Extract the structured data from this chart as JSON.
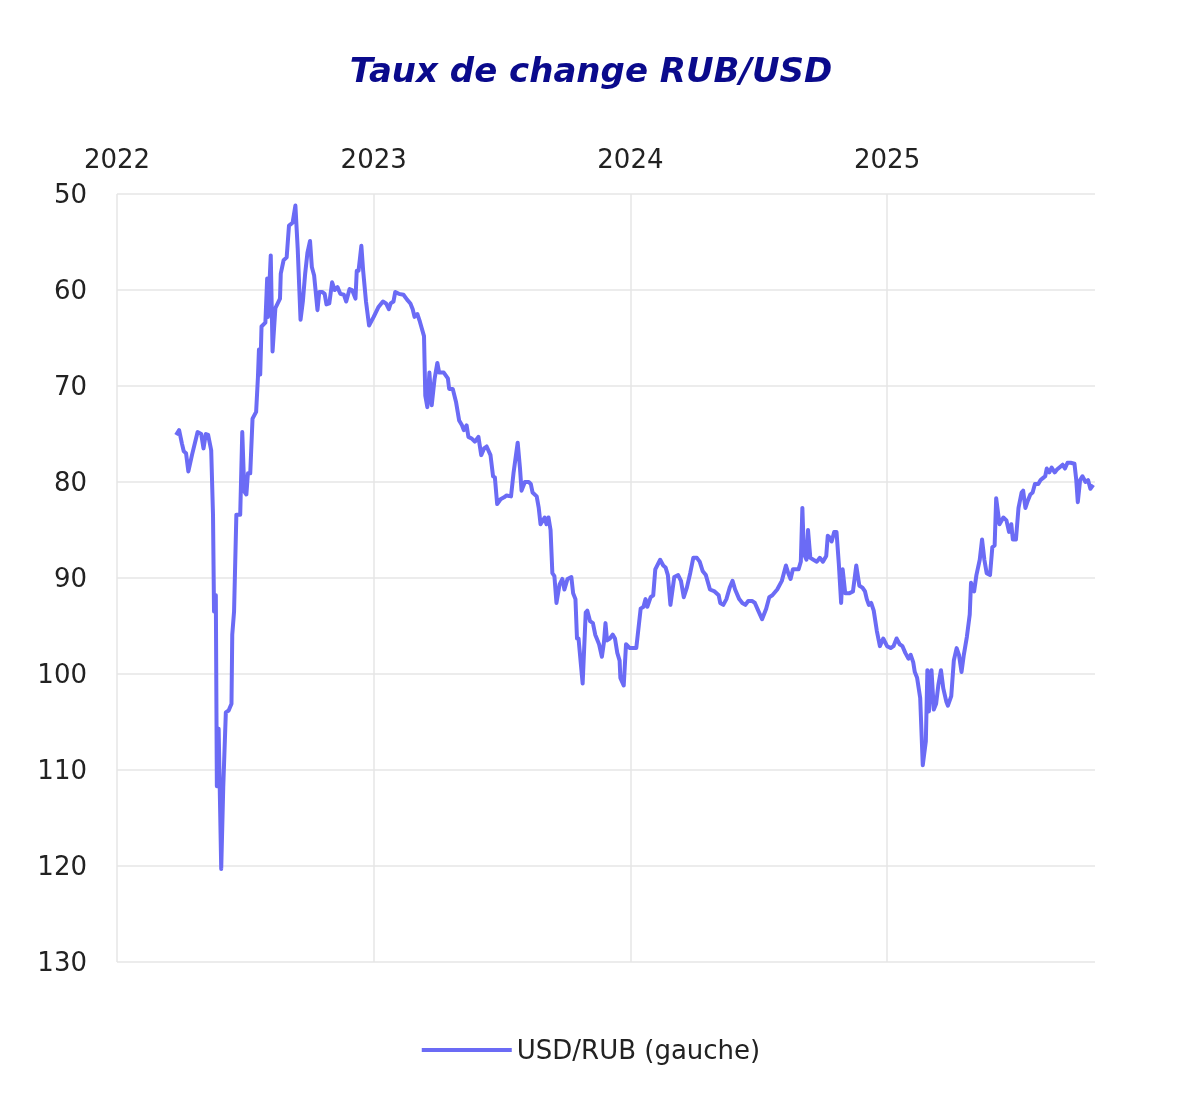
{
  "chart_data": {
    "type": "line",
    "title": "Taux de change RUB/USD",
    "xlim": [
      2022,
      2025.81
    ],
    "xticks": [
      2022,
      2023,
      2024,
      2025
    ],
    "ylim": [
      130,
      50
    ],
    "yticks": [
      50,
      60,
      70,
      80,
      90,
      100,
      110,
      120,
      130
    ],
    "grid": true,
    "legend": "bottom",
    "marker": "none",
    "line_style": "solid",
    "series": [
      {
        "name": "USD/RUB (gauche)",
        "color": "#6b6bf5",
        "x": [
          2022.23,
          2022.242,
          2022.253,
          2022.26,
          2022.269,
          2022.278,
          2022.292,
          2022.314,
          2022.328,
          2022.337,
          2022.346,
          2022.355,
          2022.367,
          2022.374,
          2022.378,
          2022.385,
          2022.389,
          2022.396,
          2022.406,
          2022.414,
          2022.424,
          2022.435,
          2022.446,
          2022.449,
          2022.456,
          2022.465,
          2022.48,
          2022.488,
          2022.496,
          2022.504,
          2022.51,
          2022.519,
          2022.528,
          2022.542,
          2022.549,
          2022.553,
          2022.558,
          2022.563,
          2022.578,
          2022.585,
          2022.588,
          2022.599,
          2022.606,
          2022.617,
          2022.626,
          2022.635,
          2022.638,
          2022.649,
          2022.661,
          2022.67,
          2022.684,
          2022.695,
          2022.704,
          2022.715,
          2022.724,
          2022.733,
          2022.742,
          2022.752,
          2022.759,
          2022.768,
          2022.781,
          2022.788,
          2022.799,
          2022.809,
          2022.816,
          2022.827,
          2022.838,
          2022.848,
          2022.859,
          2022.87,
          2022.884,
          2022.893,
          2022.906,
          2022.916,
          2022.929,
          2022.934,
          2022.941,
          2022.952,
          2022.959,
          2022.97,
          2022.982,
          2023.0,
          2023.018,
          2023.036,
          2023.048,
          2023.059,
          2023.066,
          2023.077,
          2023.084,
          2023.098,
          2023.116,
          2023.13,
          2023.143,
          2023.152,
          2023.159,
          2023.17,
          2023.18,
          2023.196,
          2023.201,
          2023.209,
          2023.217,
          2023.226,
          2023.237,
          2023.248,
          2023.255,
          2023.273,
          2023.289,
          2023.294,
          2023.308,
          2023.321,
          2023.333,
          2023.344,
          2023.351,
          2023.362,
          2023.369,
          2023.383,
          2023.394,
          2023.408,
          2023.419,
          2023.43,
          2023.44,
          2023.455,
          2023.465,
          2023.472,
          2023.481,
          2023.494,
          2023.508,
          2023.518,
          2023.535,
          2023.545,
          2023.561,
          2023.57,
          2023.576,
          2023.589,
          2023.604,
          2023.612,
          2023.619,
          2023.635,
          2023.643,
          2023.65,
          2023.666,
          2023.673,
          2023.681,
          2023.689,
          2023.696,
          2023.704,
          2023.712,
          2023.724,
          2023.735,
          2023.743,
          2023.755,
          2023.77,
          2023.777,
          2023.786,
          2023.792,
          2023.798,
          2023.814,
          2023.826,
          2023.832,
          2023.843,
          2023.854,
          2023.863,
          2023.869,
          2023.878,
          2023.889,
          2023.897,
          2023.903,
          2023.909,
          2023.92,
          2023.931,
          2023.94,
          2023.949,
          2023.958,
          2023.961,
          2023.974,
          2023.983,
          2023.998,
          2024.023,
          2024.04,
          2024.051,
          2024.059,
          2024.066,
          2024.079,
          2024.089,
          2024.097,
          2024.116,
          2024.128,
          2024.137,
          2024.146,
          2024.156,
          2024.171,
          2024.186,
          2024.197,
          2024.208,
          2024.22,
          2024.233,
          2024.245,
          2024.259,
          2024.27,
          2024.282,
          2024.294,
          2024.31,
          2024.328,
          2024.344,
          2024.35,
          2024.362,
          2024.374,
          2024.387,
          2024.398,
          2024.408,
          2024.424,
          2024.436,
          2024.448,
          2024.459,
          2024.475,
          2024.485,
          2024.498,
          2024.513,
          2024.529,
          2024.541,
          2024.553,
          2024.572,
          2024.59,
          2024.606,
          2024.615,
          2024.624,
          2024.633,
          2024.644,
          2024.655,
          2024.664,
          2024.67,
          2024.676,
          2024.686,
          2024.692,
          2024.701,
          2024.713,
          2024.726,
          2024.738,
          2024.75,
          2024.763,
          2024.769,
          2024.778,
          2024.784,
          2024.794,
          2024.803,
          2024.812,
          2024.821,
          2024.827,
          2024.837,
          2024.852,
          2024.867,
          2024.88,
          2024.892,
          2024.904,
          2024.914,
          2024.921,
          2024.929,
          2024.938,
          2024.948,
          2024.96,
          2024.972,
          2024.985,
          2025.0,
          2025.014,
          2025.025,
          2025.037,
          2025.049,
          2025.06,
          2025.071,
          2025.083,
          2025.092,
          2025.102,
          2025.108,
          2025.117,
          2025.129,
          2025.139,
          2025.151,
          2025.157,
          2025.163,
          2025.173,
          2025.182,
          2025.191,
          2025.2,
          2025.21,
          2025.219,
          2025.231,
          2025.237,
          2025.25,
          2025.26,
          2025.271,
          2025.28,
          2025.29,
          2025.299,
          2025.311,
          2025.322,
          2025.327,
          2025.339,
          2025.348,
          2025.361,
          2025.37,
          2025.379,
          2025.388,
          2025.401,
          2025.41,
          2025.419,
          2025.425,
          2025.438,
          2025.453,
          2025.465,
          2025.475,
          2025.484,
          2025.49,
          2025.502,
          2025.512,
          2025.524,
          2025.53,
          2025.539,
          2025.549,
          2025.558,
          2025.567,
          2025.576,
          2025.589,
          2025.598,
          2025.607,
          2025.616,
          2025.622,
          2025.632,
          2025.641,
          2025.653,
          2025.662,
          2025.675,
          2025.684,
          2025.693,
          2025.703,
          2025.715,
          2025.73,
          2025.737,
          2025.743,
          2025.752,
          2025.761,
          2025.773,
          2025.783,
          2025.792,
          2025.803
        ],
        "values": [
          75.1,
          74.6,
          76.0,
          76.8,
          77.0,
          78.9,
          77.2,
          74.8,
          75.0,
          76.5,
          75.0,
          75.1,
          76.7,
          83.4,
          93.5,
          91.8,
          111.7,
          105.7,
          120.3,
          111.7,
          104.0,
          103.8,
          103.1,
          95.9,
          93.5,
          83.4,
          83.4,
          74.8,
          81.0,
          81.3,
          79.1,
          79.1,
          73.4,
          72.7,
          69.1,
          66.2,
          68.8,
          63.8,
          63.4,
          58.8,
          62.8,
          56.4,
          66.4,
          61.9,
          61.4,
          60.9,
          58.3,
          56.9,
          56.6,
          53.3,
          53.0,
          51.2,
          55.7,
          63.1,
          61.2,
          58.3,
          56.1,
          54.9,
          57.6,
          58.5,
          62.1,
          60.2,
          60.2,
          60.4,
          61.5,
          61.4,
          59.2,
          60.0,
          59.7,
          60.4,
          60.5,
          61.2,
          59.9,
          60.0,
          60.9,
          58.0,
          58.0,
          55.4,
          58.0,
          61.2,
          63.7,
          62.8,
          61.8,
          61.2,
          61.4,
          62.0,
          61.4,
          61.2,
          60.2,
          60.4,
          60.5,
          61.0,
          61.4,
          62.0,
          62.8,
          62.5,
          63.3,
          64.8,
          71.0,
          72.2,
          68.6,
          72.0,
          69.3,
          67.6,
          68.6,
          68.6,
          69.2,
          70.3,
          70.3,
          71.7,
          73.6,
          74.1,
          74.6,
          74.1,
          75.3,
          75.5,
          75.8,
          75.3,
          77.2,
          76.5,
          76.3,
          77.2,
          79.4,
          79.5,
          82.3,
          81.8,
          81.6,
          81.4,
          81.5,
          79.0,
          75.9,
          78.6,
          80.9,
          80.0,
          80.0,
          80.2,
          81.1,
          81.5,
          82.7,
          84.4,
          83.7,
          84.4,
          83.7,
          85.0,
          89.5,
          89.8,
          92.6,
          90.7,
          90.1,
          91.2,
          90.1,
          89.9,
          91.6,
          92.2,
          96.3,
          96.3,
          101.0,
          93.6,
          93.4,
          94.5,
          94.7,
          95.9,
          96.3,
          96.9,
          98.2,
          96.7,
          94.7,
          96.5,
          96.3,
          95.9,
          96.3,
          97.8,
          98.6,
          100.4,
          101.2,
          96.9,
          97.3,
          97.3,
          93.2,
          93.0,
          92.2,
          93.0,
          92.0,
          91.8,
          89.1,
          88.1,
          88.7,
          88.9,
          89.7,
          92.8,
          89.9,
          89.7,
          90.3,
          92.0,
          91.0,
          89.5,
          87.9,
          87.9,
          88.3,
          89.3,
          89.7,
          91.2,
          91.4,
          91.8,
          92.6,
          92.8,
          92.2,
          91.0,
          90.3,
          91.2,
          92.2,
          92.6,
          92.8,
          92.4,
          92.4,
          92.6,
          93.4,
          94.3,
          93.2,
          92.0,
          91.8,
          91.2,
          90.3,
          88.7,
          89.5,
          90.1,
          89.1,
          89.1,
          89.1,
          88.3,
          82.7,
          87.5,
          88.1,
          85.0,
          87.9,
          88.1,
          88.3,
          87.9,
          88.3,
          87.7,
          85.6,
          85.8,
          86.2,
          85.2,
          85.2,
          88.5,
          92.6,
          89.1,
          91.6,
          91.6,
          91.4,
          88.7,
          90.8,
          91.0,
          91.4,
          92.2,
          92.8,
          92.6,
          93.4,
          95.5,
          97.1,
          96.3,
          97.1,
          97.3,
          97.1,
          96.3,
          96.9,
          97.1,
          97.8,
          98.4,
          98.0,
          98.8,
          99.8,
          100.4,
          102.5,
          109.5,
          107.0,
          99.6,
          103.9,
          99.6,
          103.7,
          103.1,
          101.1,
          99.6,
          101.5,
          102.9,
          103.3,
          102.3,
          98.6,
          97.3,
          98.0,
          99.8,
          98.0,
          96.1,
          93.8,
          90.5,
          91.4,
          89.7,
          88.1,
          86.0,
          88.1,
          89.5,
          89.7,
          86.8,
          86.6,
          81.7,
          84.4,
          83.7,
          84.0,
          85.2,
          84.4,
          86.0,
          86.0,
          82.7,
          81.1,
          80.9,
          82.7,
          81.9,
          81.3,
          81.1,
          80.2,
          80.2,
          79.8,
          79.6,
          79.4,
          78.6,
          79.0,
          78.5,
          79.0,
          78.7,
          78.4,
          78.2,
          78.6,
          78.0,
          78.0,
          78.1,
          79.8,
          82.1,
          79.8,
          79.4,
          80.0,
          79.8,
          80.7,
          80.3
        ]
      }
    ]
  }
}
